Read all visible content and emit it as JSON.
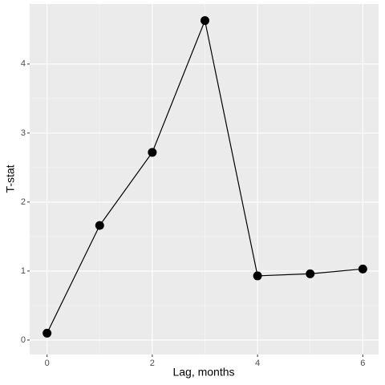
{
  "chart_data": {
    "type": "line",
    "x": [
      0,
      1,
      2,
      3,
      4,
      5,
      6
    ],
    "series": [
      {
        "color": "#000000",
        "values": [
          0.1,
          1.66,
          2.72,
          4.63,
          0.93,
          0.96,
          1.03
        ]
      }
    ],
    "xlabel": "Lag, months",
    "ylabel": "T-stat",
    "xlim": [
      -0.33,
      6.3
    ],
    "ylim": [
      -0.21,
      4.87
    ],
    "xticks": [
      0,
      2,
      4,
      6
    ],
    "yticks": [
      0,
      1,
      2,
      3,
      4
    ],
    "grid": true
  }
}
